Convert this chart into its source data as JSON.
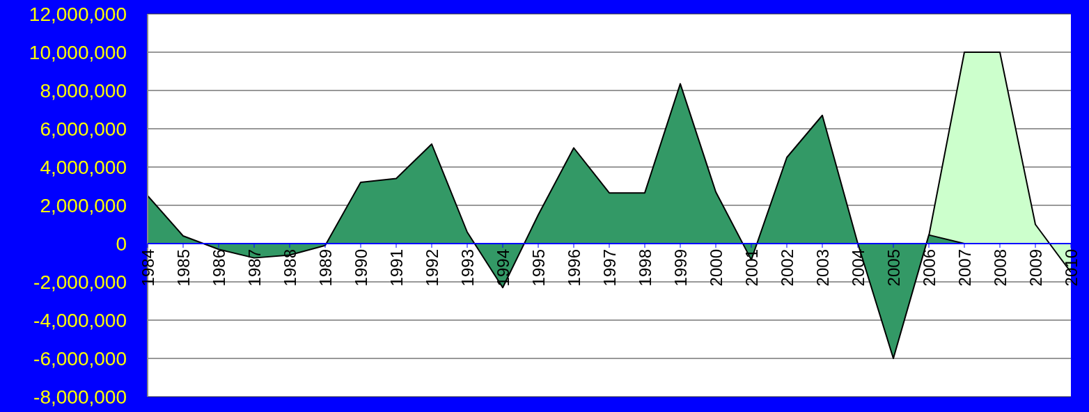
{
  "chart_data": {
    "type": "area",
    "categories": [
      "1984",
      "1985",
      "1986",
      "1987",
      "1988",
      "1989",
      "1990",
      "1991",
      "1992",
      "1993",
      "1994",
      "1995",
      "1996",
      "1997",
      "1998",
      "1999",
      "2000",
      "2001",
      "2002",
      "2003",
      "2004",
      "2005",
      "2006",
      "2007",
      "2008",
      "2009",
      "2010"
    ],
    "series": [
      {
        "color": "#ccffcc",
        "values": [
          null,
          null,
          null,
          null,
          null,
          null,
          null,
          null,
          null,
          null,
          null,
          null,
          null,
          null,
          null,
          null,
          null,
          null,
          null,
          null,
          null,
          null,
          400000,
          10000000,
          10000000,
          1000000,
          -1500000
        ]
      },
      {
        "color": "#339966",
        "values": [
          2500000,
          400000,
          -300000,
          -750000,
          -600000,
          -100000,
          3200000,
          3400000,
          5200000,
          600000,
          -2300000,
          1500000,
          5000000,
          2650000,
          2650000,
          8350000,
          2700000,
          -850000,
          4500000,
          6700000,
          0,
          -6000000,
          450000,
          0,
          null,
          null,
          null
        ]
      }
    ],
    "ylim": [
      -8000000,
      12000000
    ],
    "yticks": [
      {
        "value": -8000000,
        "label": "-8,000,000"
      },
      {
        "value": -6000000,
        "label": "-6,000,000"
      },
      {
        "value": -4000000,
        "label": "-4,000,000"
      },
      {
        "value": -2000000,
        "label": "-2,000,000"
      },
      {
        "value": 0,
        "label": "0"
      },
      {
        "value": 2000000,
        "label": "2,000,000"
      },
      {
        "value": 4000000,
        "label": "4,000,000"
      },
      {
        "value": 6000000,
        "label": "6,000,000"
      },
      {
        "value": 8000000,
        "label": "8,000,000"
      },
      {
        "value": 10000000,
        "label": "10,000,000"
      },
      {
        "value": 12000000,
        "label": "12,000,000"
      }
    ],
    "grid": "y"
  }
}
